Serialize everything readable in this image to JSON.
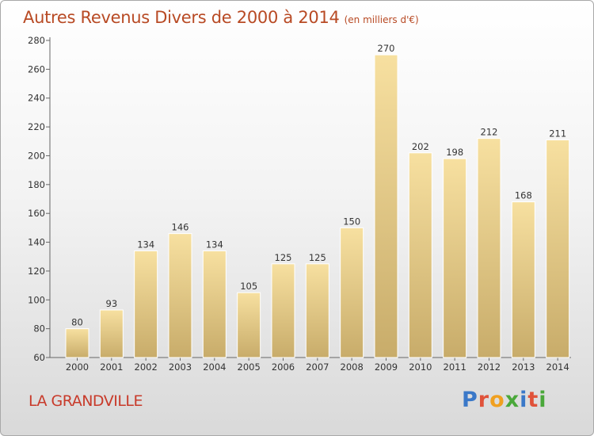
{
  "chart_data": {
    "type": "bar",
    "title": "Autres Revenus Divers de 2000 à 2014",
    "subtitle": "(en milliers d'€)",
    "xlabel": "",
    "ylabel": "",
    "categories": [
      "2000",
      "2001",
      "2002",
      "2003",
      "2004",
      "2005",
      "2006",
      "2007",
      "2008",
      "2009",
      "2010",
      "2011",
      "2012",
      "2013",
      "2014"
    ],
    "values": [
      80,
      93,
      134,
      146,
      134,
      105,
      125,
      125,
      150,
      270,
      202,
      198,
      212,
      168,
      211
    ],
    "value_labels": [
      "80",
      "93",
      "134",
      "146",
      "134",
      "105",
      "125",
      "125",
      "150",
      "270",
      "202",
      "198",
      "212",
      "168",
      "211"
    ],
    "ylim": [
      60,
      280
    ],
    "yticks": [
      "60",
      "80",
      "100",
      "120",
      "140",
      "160",
      "180",
      "200",
      "220",
      "240",
      "260",
      "280"
    ],
    "grid": false,
    "legend": "none",
    "bar_color_top": "#f7e0a0",
    "bar_color_bottom": "#c8ac6a"
  },
  "footer": {
    "city": "LA GRANDVILLE",
    "logo_text": "Proxiti"
  }
}
